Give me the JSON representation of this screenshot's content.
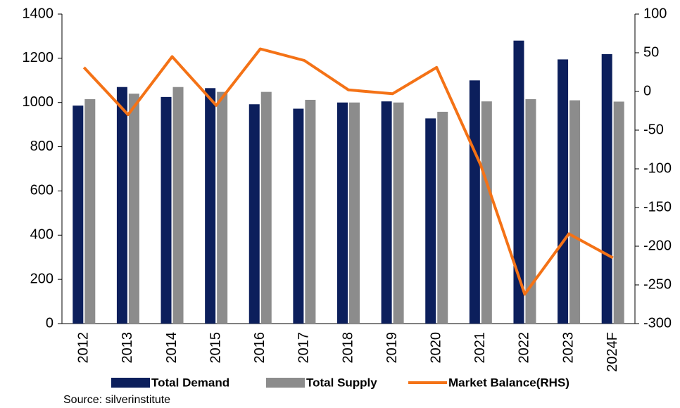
{
  "chart_data": {
    "type": "bar",
    "categories": [
      "2012",
      "2013",
      "2014",
      "2015",
      "2016",
      "2017",
      "2018",
      "2019",
      "2020",
      "2021",
      "2022",
      "2023",
      "2024F"
    ],
    "series": [
      {
        "name": "Total Demand",
        "color": "#0c1f5c",
        "values": [
          986,
          1070,
          1025,
          1065,
          992,
          972,
          1000,
          1005,
          928,
          1100,
          1280,
          1195,
          1219
        ]
      },
      {
        "name": "Total Supply",
        "color": "#8c8c8c",
        "values": [
          1015,
          1040,
          1070,
          1048,
          1048,
          1012,
          1000,
          1000,
          958,
          1005,
          1015,
          1010,
          1004
        ]
      },
      {
        "name": "Market Balance(RHS)",
        "color": "#f47216",
        "type": "line",
        "axis": "y2",
        "values": [
          31,
          -30,
          45,
          -18,
          55,
          40,
          2,
          -3,
          31,
          -95,
          -262,
          -184,
          -215
        ]
      }
    ],
    "ylim": [
      0,
      1400
    ],
    "yticks": [
      0,
      200,
      400,
      600,
      800,
      1000,
      1200,
      1400
    ],
    "y2lim": [
      -300,
      100
    ],
    "y2ticks": [
      -300,
      -250,
      -200,
      -150,
      -100,
      -50,
      0,
      50,
      100
    ],
    "source": "Source: silverinstitute"
  }
}
